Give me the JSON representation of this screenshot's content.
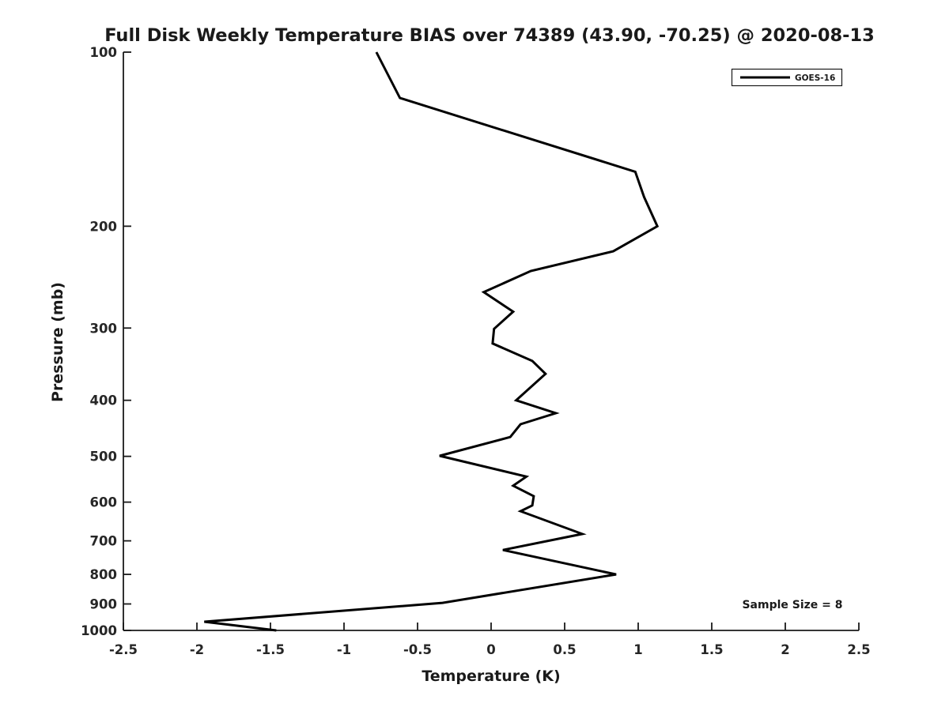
{
  "chart_data": {
    "type": "line",
    "title": "Full Disk Weekly Temperature BIAS over 74389 (43.90, -70.25) @ 2020-08-13",
    "xlabel": "Temperature (K)",
    "ylabel": "Pressure (mb)",
    "xlim": [
      -2.5,
      2.5
    ],
    "ylim": [
      100,
      1000
    ],
    "yscale": "log",
    "y_axis_increases_downward": true,
    "grid": false,
    "xticks": {
      "values": [
        -2.5,
        -2,
        -1.5,
        -1,
        -0.5,
        0,
        0.5,
        1,
        1.5,
        2,
        2.5
      ],
      "labels": [
        "-2.5",
        "-2",
        "-1.5",
        "-1",
        "-0.5",
        "0",
        "0.5",
        "1",
        "1.5",
        "2",
        "2.5"
      ]
    },
    "yticks": {
      "values": [
        100,
        200,
        300,
        400,
        500,
        600,
        700,
        800,
        900,
        1000
      ],
      "labels": [
        "100",
        "200",
        "300",
        "400",
        "500",
        "600",
        "700",
        "800",
        "900",
        "1000"
      ]
    },
    "legend": {
      "position": "upper right",
      "entries": [
        "GOES-16"
      ]
    },
    "series": [
      {
        "name": "GOES-16",
        "color": "#000000",
        "line_width": 3,
        "pressure_mb": [
          100,
          120,
          161,
          178,
          200,
          221,
          239,
          260,
          281,
          301,
          319,
          342,
          360,
          400,
          421,
          440,
          463,
          499,
          542,
          562,
          586,
          608,
          622,
          681,
          726,
          800,
          896,
          966,
          1000
        ],
        "bias_k": [
          -0.78,
          -0.62,
          0.98,
          1.04,
          1.13,
          0.83,
          0.27,
          -0.05,
          0.15,
          0.02,
          0.01,
          0.28,
          0.37,
          0.17,
          0.44,
          0.2,
          0.13,
          -0.35,
          0.24,
          0.15,
          0.29,
          0.28,
          0.2,
          0.62,
          0.08,
          0.85,
          -0.33,
          -1.95,
          -1.46
        ]
      }
    ],
    "annotation": {
      "text": "Sample Size = 8",
      "sample_size": 8
    },
    "colors": {
      "line": "#000000",
      "text": "#1a1a1a",
      "background": "#ffffff"
    }
  }
}
